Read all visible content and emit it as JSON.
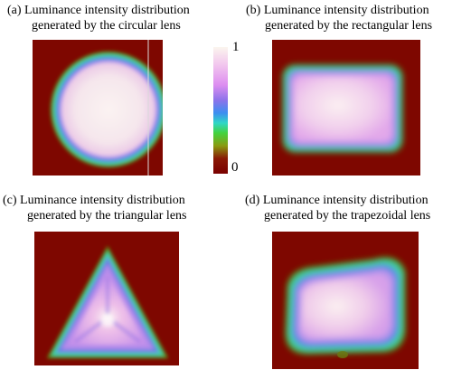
{
  "panels": [
    {
      "id": "a",
      "caption_line1": "(a)  Luminance intensity distribution",
      "caption_line2": "generated by the circular lens",
      "shape": "circle"
    },
    {
      "id": "b",
      "caption_line1": "(b) Luminance intensity distribution",
      "caption_line2": "generated by the rectangular lens",
      "shape": "rectangle"
    },
    {
      "id": "c",
      "caption_line1": "(c)  Luminance intensity distribution",
      "caption_line2": "generated by the triangular lens",
      "shape": "triangle"
    },
    {
      "id": "d",
      "caption_line1": "(d) Luminance intensity distribution",
      "caption_line2": "generated by the trapezoidal lens",
      "shape": "trapezoid"
    }
  ],
  "colorbar": {
    "max_label": "1",
    "min_label": "0",
    "stops": [
      "#fbf5ee",
      "#f2c6ee",
      "#dd8ef0",
      "#8c73ea",
      "#3d8ef0",
      "#2fd7c6",
      "#43d23e",
      "#8a9a10",
      "#8a1a05",
      "#7a0000"
    ]
  },
  "colors": {
    "background": "#7e0700",
    "core": "#f7ecef",
    "pink": "#ecbde6",
    "violet": "#b48ae8",
    "blue": "#4f7fe6",
    "cyan": "#2bd3cf",
    "green": "#4fc23a"
  }
}
